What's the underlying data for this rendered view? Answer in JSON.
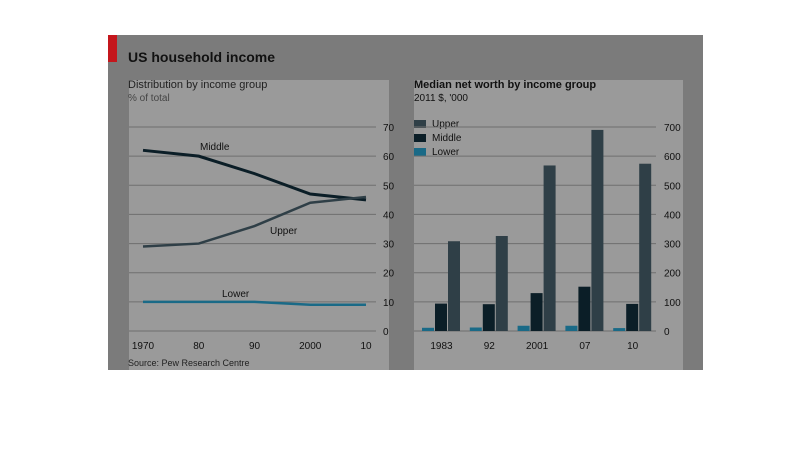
{
  "title": "US household income",
  "left_chart_subtitle": "Distribution by income group",
  "left_chart_unit": "% of total",
  "right_chart_title": "Median net worth by income group",
  "right_chart_unit": "2011 $, '000",
  "source": "Source: Pew Research Centre",
  "colors": {
    "upper": "#2f3f47",
    "middle": "#0b1e27",
    "lower": "#1a6a87",
    "accent": "#c4161c"
  },
  "chart_data": [
    {
      "type": "line",
      "x": [
        1970,
        1980,
        1990,
        2000,
        2010
      ],
      "x_tick_labels": [
        "1970",
        "80",
        "90",
        "2000",
        "10"
      ],
      "series": [
        {
          "name": "Middle",
          "values": [
            62,
            60,
            54,
            47,
            45
          ]
        },
        {
          "name": "Upper",
          "values": [
            29,
            30,
            36,
            44,
            46
          ]
        },
        {
          "name": "Lower",
          "values": [
            10,
            10,
            10,
            9,
            9
          ]
        }
      ],
      "ylim": [
        0,
        70
      ],
      "y_ticks": [
        0,
        10,
        20,
        30,
        40,
        50,
        60,
        70
      ],
      "y_axis_side": "right",
      "grid": true
    },
    {
      "type": "bar",
      "categories": [
        "1983",
        "92",
        "2001",
        "07",
        "10"
      ],
      "series": [
        {
          "name": "Lower",
          "values": [
            11,
            12,
            18,
            18,
            10
          ]
        },
        {
          "name": "Middle",
          "values": [
            94,
            92,
            130,
            152,
            93
          ]
        },
        {
          "name": "Upper",
          "values": [
            308,
            326,
            568,
            690,
            574
          ]
        }
      ],
      "ylim": [
        0,
        700
      ],
      "y_ticks": [
        0,
        100,
        200,
        300,
        400,
        500,
        600,
        700
      ],
      "y_axis_side": "right",
      "legend": [
        "Upper",
        "Middle",
        "Lower"
      ],
      "legend_position": "top-left",
      "grid": true
    }
  ]
}
